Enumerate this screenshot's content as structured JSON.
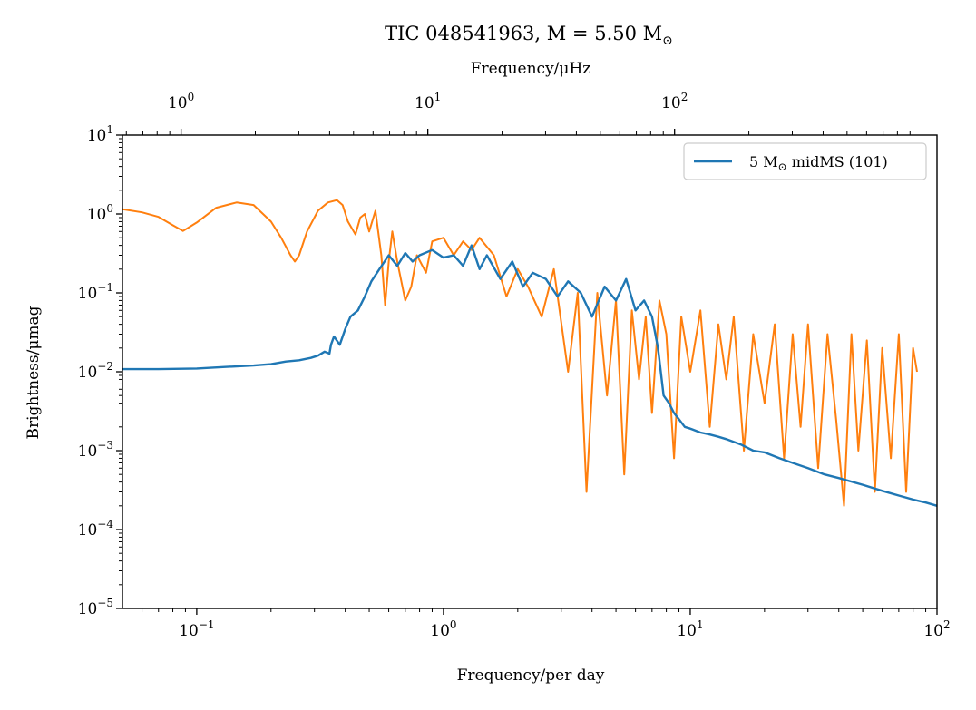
{
  "chart_data": {
    "type": "line",
    "title": "TIC 048541963, M = 5.50 M",
    "title_sub": "⊙",
    "xlabel": "Frequency/per day",
    "x2label": "Frequency/μHz",
    "ylabel": "Brightness/μmag",
    "xscale": "log",
    "yscale": "log",
    "xlim": [
      0.05,
      100
    ],
    "ylim": [
      1e-05,
      10
    ],
    "x2lim": [
      0.5787,
      1157.4
    ],
    "x_ticks": [
      {
        "value": 0.1,
        "base": "10",
        "exp": "−1"
      },
      {
        "value": 1,
        "base": "10",
        "exp": "0"
      },
      {
        "value": 10,
        "base": "10",
        "exp": "1"
      },
      {
        "value": 100,
        "base": "10",
        "exp": "2"
      }
    ],
    "x2_ticks": [
      {
        "value": 1,
        "base": "10",
        "exp": "0"
      },
      {
        "value": 10,
        "base": "10",
        "exp": "1"
      },
      {
        "value": 100,
        "base": "10",
        "exp": "2"
      }
    ],
    "y_ticks": [
      {
        "value": 1e-05,
        "base": "10",
        "exp": "−5"
      },
      {
        "value": 0.0001,
        "base": "10",
        "exp": "−4"
      },
      {
        "value": 0.001,
        "base": "10",
        "exp": "−3"
      },
      {
        "value": 0.01,
        "base": "10",
        "exp": "−2"
      },
      {
        "value": 0.1,
        "base": "10",
        "exp": "−1"
      },
      {
        "value": 1,
        "base": "10",
        "exp": "0"
      },
      {
        "value": 10,
        "base": "10",
        "exp": "1"
      }
    ],
    "legend": {
      "position": "upper right",
      "label_prefix": "5 M",
      "label_sub": "⊙",
      "label_suffix": " midMS (101)",
      "series": "model"
    },
    "series": [
      {
        "id": "observed",
        "color": "#ff7f0e",
        "x": [
          0.05,
          0.06,
          0.07,
          0.08,
          0.088,
          0.1,
          0.12,
          0.145,
          0.17,
          0.2,
          0.22,
          0.24,
          0.25,
          0.26,
          0.28,
          0.31,
          0.34,
          0.37,
          0.39,
          0.41,
          0.44,
          0.46,
          0.48,
          0.5,
          0.53,
          0.56,
          0.58,
          0.6,
          0.62,
          0.65,
          0.7,
          0.74,
          0.78,
          0.85,
          0.9,
          1.0,
          1.1,
          1.2,
          1.3,
          1.4,
          1.6,
          1.8,
          2.0,
          2.2,
          2.5,
          2.8,
          3.2,
          3.5,
          3.8,
          4.2,
          4.6,
          5.0,
          5.4,
          5.8,
          6.2,
          6.6,
          7.0,
          7.5,
          8.0,
          8.6,
          9.2,
          10.0,
          11.0,
          12.0,
          13.0,
          14.0,
          15.0,
          16.5,
          18.0,
          20.0,
          22.0,
          24.0,
          26.0,
          28.0,
          30.0,
          33.0,
          36.0,
          39.0,
          42.0,
          45.0,
          48.0,
          52.0,
          56.0,
          60.0,
          65.0,
          70.0,
          75.0,
          80.0,
          83.0
        ],
        "y": [
          1.15,
          1.05,
          0.92,
          0.72,
          0.61,
          0.78,
          1.2,
          1.4,
          1.3,
          0.8,
          0.5,
          0.3,
          0.25,
          0.3,
          0.6,
          1.1,
          1.4,
          1.5,
          1.3,
          0.8,
          0.55,
          0.9,
          1.0,
          0.6,
          1.1,
          0.3,
          0.07,
          0.25,
          0.6,
          0.25,
          0.08,
          0.12,
          0.3,
          0.18,
          0.45,
          0.5,
          0.3,
          0.45,
          0.35,
          0.5,
          0.3,
          0.09,
          0.2,
          0.12,
          0.05,
          0.2,
          0.01,
          0.1,
          0.0003,
          0.1,
          0.005,
          0.08,
          0.0005,
          0.06,
          0.008,
          0.05,
          0.003,
          0.08,
          0.03,
          0.0008,
          0.05,
          0.01,
          0.06,
          0.002,
          0.04,
          0.008,
          0.05,
          0.001,
          0.03,
          0.004,
          0.04,
          0.0008,
          0.03,
          0.002,
          0.04,
          0.0006,
          0.03,
          0.0025,
          0.0002,
          0.03,
          0.001,
          0.025,
          0.0003,
          0.02,
          0.0008,
          0.03,
          0.0003,
          0.02,
          0.01
        ]
      },
      {
        "id": "model",
        "color": "#1f77b4",
        "x": [
          0.05,
          0.07,
          0.1,
          0.13,
          0.17,
          0.2,
          0.23,
          0.26,
          0.29,
          0.31,
          0.33,
          0.345,
          0.35,
          0.36,
          0.38,
          0.4,
          0.42,
          0.45,
          0.48,
          0.51,
          0.55,
          0.6,
          0.65,
          0.7,
          0.75,
          0.8,
          0.9,
          1.0,
          1.1,
          1.2,
          1.3,
          1.4,
          1.5,
          1.7,
          1.9,
          2.1,
          2.3,
          2.6,
          2.9,
          3.2,
          3.6,
          4.0,
          4.5,
          5.0,
          5.5,
          6.0,
          6.5,
          7.0,
          7.4,
          7.8,
          8.2,
          8.6,
          9.0,
          9.5,
          10.0,
          11.0,
          12.0,
          13.0,
          14.0,
          16.0,
          18.0,
          20.0,
          23.0,
          26.0,
          30.0,
          35.0,
          40.0,
          50.0,
          60.0,
          70.0,
          80.0,
          90.0,
          100.0
        ],
        "y": [
          0.0108,
          0.0108,
          0.011,
          0.0115,
          0.012,
          0.0125,
          0.0135,
          0.014,
          0.015,
          0.016,
          0.018,
          0.017,
          0.022,
          0.028,
          0.022,
          0.035,
          0.05,
          0.06,
          0.09,
          0.14,
          0.2,
          0.3,
          0.22,
          0.32,
          0.25,
          0.3,
          0.35,
          0.28,
          0.3,
          0.22,
          0.4,
          0.2,
          0.3,
          0.15,
          0.25,
          0.12,
          0.18,
          0.15,
          0.09,
          0.14,
          0.1,
          0.05,
          0.12,
          0.08,
          0.15,
          0.06,
          0.08,
          0.05,
          0.02,
          0.005,
          0.004,
          0.003,
          0.0025,
          0.002,
          0.0019,
          0.0017,
          0.0016,
          0.0015,
          0.0014,
          0.0012,
          0.001,
          0.00095,
          0.0008,
          0.0007,
          0.0006,
          0.0005,
          0.00045,
          0.00037,
          0.00031,
          0.00027,
          0.00024,
          0.00022,
          0.0002
        ]
      }
    ]
  }
}
